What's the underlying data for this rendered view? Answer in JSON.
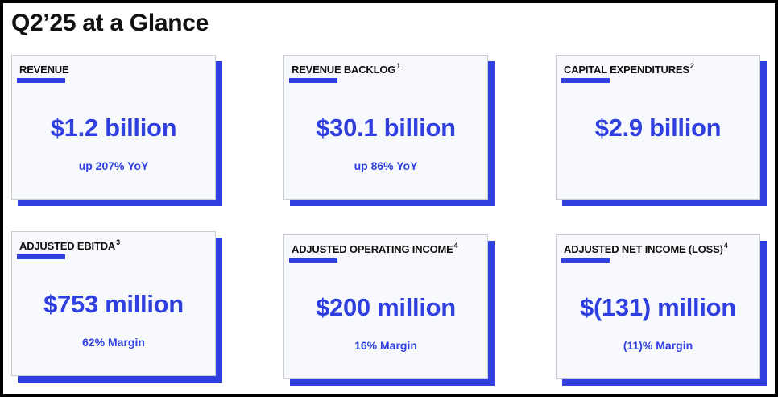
{
  "page": {
    "title": "Q2’25 at a Glance"
  },
  "metrics": [
    {
      "label": "REVENUE",
      "footnote": "",
      "value": "$1.2 billion",
      "sub": "up 207% YoY"
    },
    {
      "label": "REVENUE BACKLOG",
      "footnote": "1",
      "value": "$30.1 billion",
      "sub": "up 86% YoY"
    },
    {
      "label": "CAPITAL EXPENDITURES",
      "footnote": "2",
      "value": "$2.9 billion",
      "sub": ""
    },
    {
      "label": "ADJUSTED EBITDA",
      "footnote": "3",
      "value": "$753 million",
      "sub": "62% Margin"
    },
    {
      "label": "ADJUSTED OPERATING INCOME",
      "footnote": "4",
      "value": "$200 million",
      "sub": "16% Margin"
    },
    {
      "label": "ADJUSTED NET INCOME (LOSS)",
      "footnote": "4",
      "value": "$(131) million",
      "sub": "(11)% Margin"
    }
  ],
  "colors": {
    "accent": "#2f3fe0",
    "card_bg": "#f7f9fc",
    "text": "#111111"
  }
}
